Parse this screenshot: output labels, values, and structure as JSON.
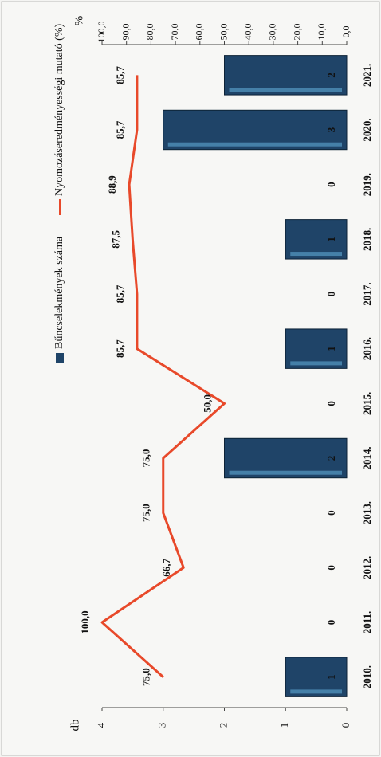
{
  "chart_data": {
    "type": "bar",
    "categories": [
      "2010.",
      "2011.",
      "2012.",
      "2013.",
      "2014.",
      "2015.",
      "2016.",
      "2017.",
      "2018.",
      "2019.",
      "2020.",
      "2021."
    ],
    "series": [
      {
        "name": "Bűncselekmények száma",
        "type": "bar",
        "color": "#1f4468",
        "values": [
          1,
          0,
          0,
          0,
          2,
          0,
          1,
          0,
          1,
          0,
          3,
          2
        ]
      },
      {
        "name": "Nyomozáseredményességi mutató (%)",
        "type": "line",
        "axis": "y2",
        "color": "#e8492a",
        "values": [
          75.0,
          100.0,
          66.7,
          75.0,
          75.0,
          50.0,
          85.7,
          85.7,
          87.5,
          88.9,
          85.7,
          85.7
        ],
        "value_labels": [
          "75,0",
          "100,0",
          "66,7",
          "75,0",
          "75,0",
          "50,0",
          "85,7",
          "85,7",
          "87,5",
          "88,9",
          "85,7",
          "85,7"
        ]
      }
    ],
    "ylabel": "db",
    "ylim": [
      0,
      4
    ],
    "yticks": [
      0,
      1,
      2,
      3,
      4
    ],
    "y2label": "%",
    "y2lim": [
      0,
      100
    ],
    "y2ticks": [
      {
        "value": 0,
        "label": "0,0"
      },
      {
        "value": 10,
        "label": "10,0"
      },
      {
        "value": 20,
        "label": "20,0"
      },
      {
        "value": 30,
        "label": "30,0"
      },
      {
        "value": 40,
        "label": "40,0"
      },
      {
        "value": 50,
        "label": "50,0"
      },
      {
        "value": 60,
        "label": "60,0"
      },
      {
        "value": 70,
        "label": "70,0"
      },
      {
        "value": 80,
        "label": "80,0"
      },
      {
        "value": 90,
        "label": "90,0"
      },
      {
        "value": 100,
        "label": "100,0"
      }
    ]
  }
}
